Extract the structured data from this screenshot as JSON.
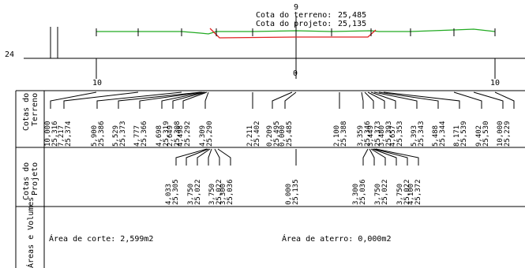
{
  "header": {
    "station": "9",
    "terrain_label": "Cota do terreno:",
    "terrain_value": "25,485",
    "project_label": "Cota do projeto:",
    "project_value": "25,135"
  },
  "axis": {
    "elevation_tick": "24",
    "left_offset": "10",
    "center_offset": "0",
    "right_offset": "10"
  },
  "sections": {
    "terreno_line1": "Cotas do",
    "terreno_line2": "Terreno",
    "projeto_line1": "Cotas do",
    "projeto_line2": "Projeto",
    "areas_line1": "Áreas e Volumes"
  },
  "areas": {
    "corte": "Área de corte: 2,599m2",
    "aterro": "Área de aterro: 0,000m2"
  },
  "terrain_labels": [
    "10,000",
    "25,316",
    "7,217",
    "25,374",
    "5,900",
    "25,386",
    "5,529",
    "25,373",
    "4,777",
    "25,366",
    "4,698",
    "25,319",
    "2,649",
    "25,308",
    "4,498",
    "25,292",
    "4,309",
    "25,290",
    "2,211",
    "25,402",
    "0,209",
    "25,495",
    "0,000",
    "25,485",
    "2,100",
    "25,388",
    "3,359",
    "25,346",
    "3,449",
    "25,373",
    "3,480",
    "25,393",
    "4,657",
    "25,353",
    "5,393",
    "25,343",
    "5,488",
    "25,344",
    "8,171",
    "25,539",
    "9,402",
    "25,530",
    "10,000",
    "25,229"
  ],
  "project_labels": [
    "4,033",
    "25,305",
    "3,750",
    "25,022",
    "3,750",
    "25,022",
    "3,300",
    "25,036",
    "0,000",
    "25,135",
    "3,300",
    "25,036",
    "3,750",
    "25,022",
    "3,750",
    "25,022",
    "4,100",
    "25,372"
  ],
  "colors": {
    "terrain": "#22aa22",
    "project": "#e02020",
    "lines": "#000000"
  }
}
